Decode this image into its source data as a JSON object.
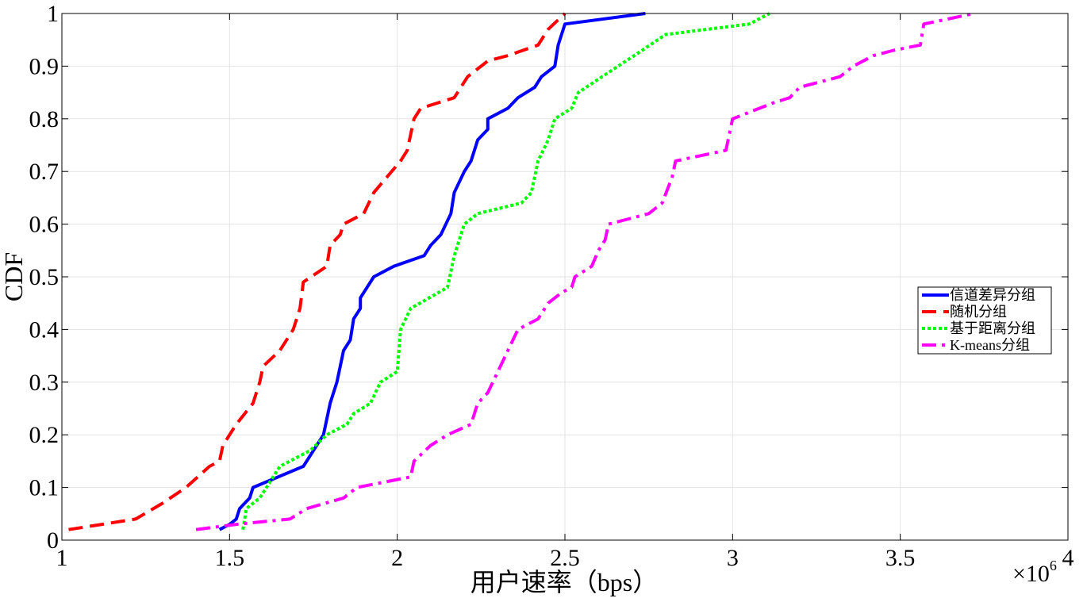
{
  "chart_data": {
    "type": "line",
    "title": "",
    "xlabel": "用户速率（bps）",
    "ylabel": "CDF",
    "x_exponent_label": "×10",
    "x_exponent_power": "6",
    "xlim": [
      1,
      4
    ],
    "ylim": [
      0,
      1
    ],
    "x_ticks": [
      1,
      1.5,
      2,
      2.5,
      3,
      3.5,
      4
    ],
    "x_tick_labels": [
      "1",
      "1.5",
      "2",
      "2.5",
      "3",
      "3.5",
      "4"
    ],
    "y_ticks": [
      0,
      0.1,
      0.2,
      0.3,
      0.4,
      0.5,
      0.6,
      0.7,
      0.8,
      0.9,
      1
    ],
    "y_tick_labels": [
      "0",
      "0.1",
      "0.2",
      "0.3",
      "0.4",
      "0.5",
      "0.6",
      "0.7",
      "0.8",
      "0.9",
      "1"
    ],
    "grid": true,
    "legend_position": "right",
    "series": [
      {
        "name": "信道差异分组",
        "color": "#0000ff",
        "dash": "solid",
        "points": [
          [
            1.47,
            0.02
          ],
          [
            1.5,
            0.03
          ],
          [
            1.52,
            0.04
          ],
          [
            1.53,
            0.06
          ],
          [
            1.56,
            0.08
          ],
          [
            1.57,
            0.1
          ],
          [
            1.72,
            0.14
          ],
          [
            1.78,
            0.2
          ],
          [
            1.8,
            0.26
          ],
          [
            1.82,
            0.3
          ],
          [
            1.84,
            0.36
          ],
          [
            1.86,
            0.38
          ],
          [
            1.87,
            0.42
          ],
          [
            1.89,
            0.44
          ],
          [
            1.89,
            0.46
          ],
          [
            1.93,
            0.5
          ],
          [
            1.99,
            0.52
          ],
          [
            2.08,
            0.54
          ],
          [
            2.1,
            0.56
          ],
          [
            2.13,
            0.58
          ],
          [
            2.16,
            0.62
          ],
          [
            2.17,
            0.66
          ],
          [
            2.2,
            0.7
          ],
          [
            2.22,
            0.72
          ],
          [
            2.24,
            0.76
          ],
          [
            2.27,
            0.78
          ],
          [
            2.27,
            0.8
          ],
          [
            2.33,
            0.82
          ],
          [
            2.36,
            0.84
          ],
          [
            2.41,
            0.86
          ],
          [
            2.43,
            0.88
          ],
          [
            2.47,
            0.9
          ],
          [
            2.48,
            0.94
          ],
          [
            2.5,
            0.98
          ],
          [
            2.74,
            1.0
          ]
        ]
      },
      {
        "name": "随机分组",
        "color": "#ff0000",
        "dash": "dashed",
        "points": [
          [
            1.02,
            0.02
          ],
          [
            1.12,
            0.03
          ],
          [
            1.22,
            0.04
          ],
          [
            1.3,
            0.07
          ],
          [
            1.37,
            0.1
          ],
          [
            1.44,
            0.14
          ],
          [
            1.47,
            0.15
          ],
          [
            1.48,
            0.18
          ],
          [
            1.52,
            0.22
          ],
          [
            1.57,
            0.26
          ],
          [
            1.59,
            0.3
          ],
          [
            1.6,
            0.33
          ],
          [
            1.65,
            0.36
          ],
          [
            1.69,
            0.4
          ],
          [
            1.71,
            0.44
          ],
          [
            1.72,
            0.49
          ],
          [
            1.79,
            0.52
          ],
          [
            1.8,
            0.56
          ],
          [
            1.83,
            0.58
          ],
          [
            1.84,
            0.6
          ],
          [
            1.9,
            0.62
          ],
          [
            1.93,
            0.66
          ],
          [
            2.01,
            0.72
          ],
          [
            2.03,
            0.74
          ],
          [
            2.05,
            0.8
          ],
          [
            2.07,
            0.82
          ],
          [
            2.17,
            0.84
          ],
          [
            2.21,
            0.88
          ],
          [
            2.27,
            0.91
          ],
          [
            2.33,
            0.92
          ],
          [
            2.42,
            0.94
          ],
          [
            2.45,
            0.97
          ],
          [
            2.5,
            1.0
          ]
        ]
      },
      {
        "name": "基于距离分组",
        "color": "#00ff00",
        "dash": "dotted",
        "points": [
          [
            1.54,
            0.02
          ],
          [
            1.55,
            0.06
          ],
          [
            1.59,
            0.08
          ],
          [
            1.63,
            0.12
          ],
          [
            1.65,
            0.14
          ],
          [
            1.74,
            0.17
          ],
          [
            1.79,
            0.2
          ],
          [
            1.85,
            0.22
          ],
          [
            1.87,
            0.24
          ],
          [
            1.92,
            0.26
          ],
          [
            1.95,
            0.3
          ],
          [
            2.0,
            0.32
          ],
          [
            2.01,
            0.4
          ],
          [
            2.04,
            0.44
          ],
          [
            2.15,
            0.48
          ],
          [
            2.17,
            0.54
          ],
          [
            2.2,
            0.6
          ],
          [
            2.24,
            0.62
          ],
          [
            2.37,
            0.64
          ],
          [
            2.4,
            0.66
          ],
          [
            2.42,
            0.72
          ],
          [
            2.45,
            0.76
          ],
          [
            2.47,
            0.8
          ],
          [
            2.52,
            0.82
          ],
          [
            2.54,
            0.85
          ],
          [
            2.73,
            0.93
          ],
          [
            2.8,
            0.96
          ],
          [
            3.05,
            0.98
          ],
          [
            3.11,
            1.0
          ]
        ]
      },
      {
        "name": "K-means分组",
        "color": "#ff00ff",
        "dash": "dashdot",
        "points": [
          [
            1.4,
            0.02
          ],
          [
            1.52,
            0.03
          ],
          [
            1.68,
            0.04
          ],
          [
            1.73,
            0.06
          ],
          [
            1.84,
            0.08
          ],
          [
            1.88,
            0.1
          ],
          [
            2.04,
            0.12
          ],
          [
            2.05,
            0.15
          ],
          [
            2.1,
            0.18
          ],
          [
            2.15,
            0.2
          ],
          [
            2.22,
            0.22
          ],
          [
            2.24,
            0.26
          ],
          [
            2.27,
            0.28
          ],
          [
            2.3,
            0.32
          ],
          [
            2.33,
            0.36
          ],
          [
            2.36,
            0.4
          ],
          [
            2.42,
            0.42
          ],
          [
            2.45,
            0.45
          ],
          [
            2.49,
            0.47
          ],
          [
            2.52,
            0.48
          ],
          [
            2.53,
            0.5
          ],
          [
            2.58,
            0.52
          ],
          [
            2.6,
            0.55
          ],
          [
            2.62,
            0.57
          ],
          [
            2.63,
            0.6
          ],
          [
            2.69,
            0.61
          ],
          [
            2.75,
            0.62
          ],
          [
            2.79,
            0.64
          ],
          [
            2.82,
            0.69
          ],
          [
            2.83,
            0.72
          ],
          [
            2.98,
            0.74
          ],
          [
            3.0,
            0.8
          ],
          [
            3.12,
            0.83
          ],
          [
            3.17,
            0.84
          ],
          [
            3.2,
            0.86
          ],
          [
            3.32,
            0.88
          ],
          [
            3.36,
            0.9
          ],
          [
            3.42,
            0.92
          ],
          [
            3.48,
            0.93
          ],
          [
            3.56,
            0.94
          ],
          [
            3.57,
            0.98
          ],
          [
            3.72,
            1.0
          ]
        ]
      }
    ]
  }
}
